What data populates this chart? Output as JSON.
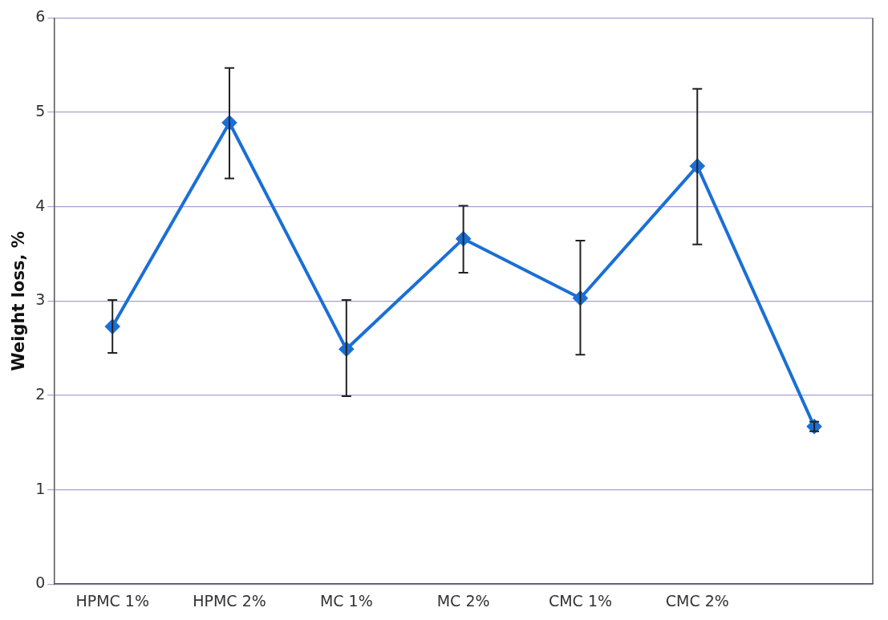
{
  "chart_data": {
    "type": "line",
    "ylabel": "Weight loss, %",
    "categories": [
      "HPMC 1%",
      "HPMC 2%",
      "MC 1%",
      "MC 2%",
      "CMC 1%",
      "CMC 2%",
      null
    ],
    "series": [
      {
        "color": "#1a6fd6",
        "values": [
          2.73,
          4.89,
          2.49,
          3.66,
          3.03,
          4.43,
          1.67
        ],
        "errors": [
          [
            2.45,
            3.01
          ],
          [
            4.3,
            5.47
          ],
          [
            1.99,
            3.01
          ],
          [
            3.3,
            4.01
          ],
          [
            2.43,
            3.64
          ],
          [
            3.6,
            5.25
          ],
          [
            1.62,
            1.72
          ]
        ]
      }
    ],
    "ylim": [
      0,
      6
    ],
    "yticks": [
      0,
      1,
      2,
      3,
      4,
      5,
      6
    ],
    "grid": "y",
    "legend": false,
    "marker": "diamond",
    "line_style": "solid"
  }
}
